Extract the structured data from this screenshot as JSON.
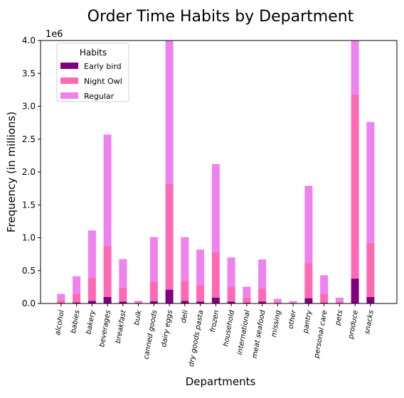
{
  "chart_data": {
    "type": "bar",
    "stacked": true,
    "title": "Order Time Habits by Department",
    "xlabel": "Departments",
    "ylabel": "Frequency (in millions)",
    "y_offset_label": "1e6",
    "ylim": [
      0,
      4.0
    ],
    "yticks": [
      "0.0",
      "0.5",
      "1.0",
      "1.5",
      "2.0",
      "2.5",
      "3.0",
      "3.5",
      "4.0"
    ],
    "legend": {
      "title": "Habits",
      "placement": "top-left"
    },
    "categories": [
      "alcohol",
      "babies",
      "bakery",
      "beverages",
      "breakfast",
      "bulk",
      "canned goods",
      "dairy eggs",
      "deli",
      "dry goods pasta",
      "frozen",
      "household",
      "international",
      "meat seafood",
      "missing",
      "other",
      "pantry",
      "personal care",
      "pets",
      "produce",
      "snacks"
    ],
    "series": [
      {
        "name": "Early bird",
        "color": "#800080",
        "values": [
          0.008,
          0.015,
          0.04,
          0.1,
          0.03,
          0.002,
          0.035,
          0.21,
          0.04,
          0.03,
          0.09,
          0.03,
          0.01,
          0.03,
          0.003,
          0.002,
          0.08,
          0.01,
          0.005,
          0.38,
          0.1
        ]
      },
      {
        "name": "Night Owl",
        "color": "#ff69b4",
        "values": [
          0.042,
          0.135,
          0.35,
          0.77,
          0.21,
          0.013,
          0.295,
          1.61,
          0.31,
          0.25,
          0.69,
          0.22,
          0.08,
          0.2,
          0.02,
          0.008,
          0.53,
          0.14,
          0.025,
          2.8,
          0.82
        ]
      },
      {
        "name": "Regular",
        "color": "#ee82ee",
        "values": [
          0.095,
          0.265,
          0.72,
          1.7,
          0.435,
          0.025,
          0.68,
          2.2,
          0.66,
          0.54,
          1.34,
          0.45,
          0.165,
          0.44,
          0.047,
          0.025,
          1.18,
          0.28,
          0.058,
          0.82,
          1.84
        ]
      }
    ]
  }
}
